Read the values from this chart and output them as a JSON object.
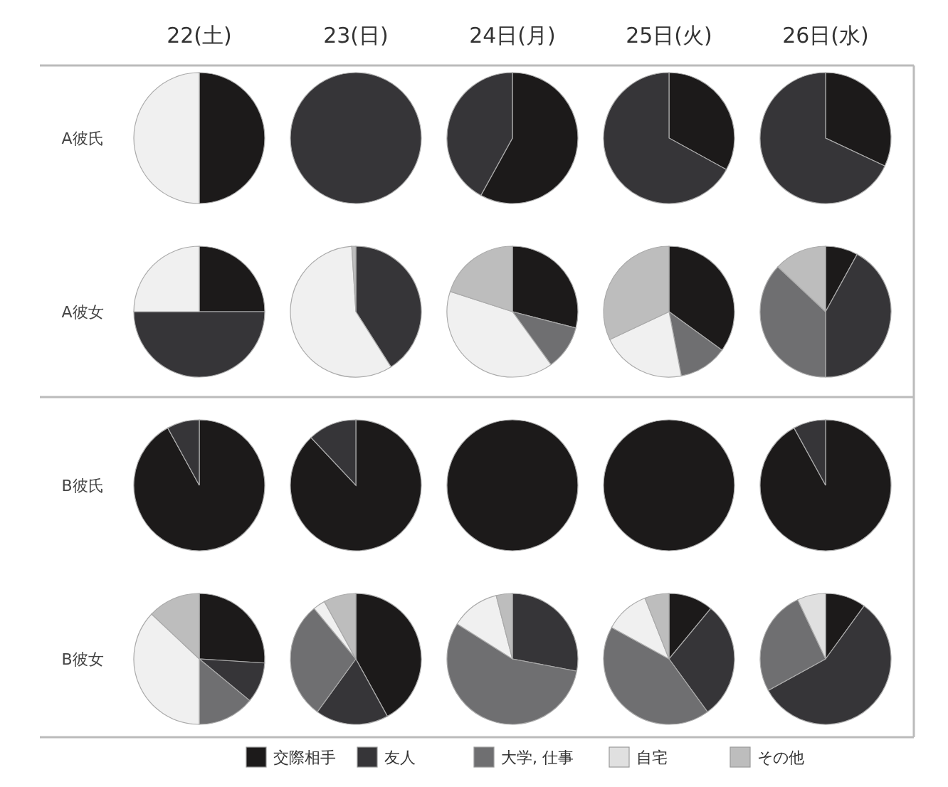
{
  "chart_data": [
    {
      "type": "pie",
      "title": "22(土)",
      "ylabel": "A彼氏",
      "categories": [
        null,
        null,
        null,
        null,
        null
      ],
      "values": [
        50,
        0,
        0,
        50,
        0
      ],
      "colors": [
        "#1c1a1a",
        "#363538",
        "#6f6f71",
        "#f0f0f0",
        "#bdbdbd"
      ]
    },
    {
      "type": "pie",
      "title": "23(日)",
      "categories": [
        null,
        null,
        null,
        null,
        null
      ],
      "values": [
        0,
        100,
        0,
        0,
        0
      ],
      "colors": [
        "#1c1a1a",
        "#363538",
        "#6f6f71",
        "#f0f0f0",
        "#bdbdbd"
      ]
    },
    {
      "type": "pie",
      "title": "24日(月)",
      "categories": [
        null,
        null,
        null,
        null,
        null
      ],
      "values": [
        58,
        42,
        0,
        0,
        0
      ],
      "colors": [
        "#1c1a1a",
        "#363538",
        "#6f6f71",
        "#f0f0f0",
        "#bdbdbd"
      ]
    },
    {
      "type": "pie",
      "title": "25日(火)",
      "categories": [
        null,
        null,
        null,
        null,
        null
      ],
      "values": [
        33,
        67,
        0,
        0,
        0
      ],
      "colors": [
        "#1c1a1a",
        "#363538",
        "#6f6f71",
        "#f0f0f0",
        "#bdbdbd"
      ]
    },
    {
      "type": "pie",
      "title": "26日(水)",
      "categories": [
        null,
        null,
        null,
        null,
        null
      ],
      "values": [
        32,
        68,
        0,
        0,
        0
      ],
      "colors": [
        "#1c1a1a",
        "#363538",
        "#6f6f71",
        "#f0f0f0",
        "#bdbdbd"
      ]
    },
    {
      "type": "pie",
      "ylabel": "A彼女",
      "categories": [
        null,
        null,
        null,
        null,
        null
      ],
      "values": [
        25,
        50,
        0,
        25,
        0
      ],
      "colors": [
        "#1c1a1a",
        "#363538",
        "#6f6f71",
        "#f0f0f0",
        "#bdbdbd"
      ]
    },
    {
      "type": "pie",
      "categories": [
        null,
        null,
        null,
        null,
        null
      ],
      "values": [
        0,
        41,
        0,
        58,
        1
      ],
      "colors": [
        "#1c1a1a",
        "#363538",
        "#6f6f71",
        "#f0f0f0",
        "#bdbdbd"
      ]
    },
    {
      "type": "pie",
      "categories": [
        null,
        null,
        null,
        null,
        null
      ],
      "values": [
        29,
        0,
        11,
        40,
        20
      ],
      "colors": [
        "#1c1a1a",
        "#363538",
        "#6f6f71",
        "#f0f0f0",
        "#bdbdbd"
      ]
    },
    {
      "type": "pie",
      "categories": [
        null,
        null,
        null,
        null,
        null
      ],
      "values": [
        35,
        0,
        12,
        21,
        32
      ],
      "colors": [
        "#1c1a1a",
        "#363538",
        "#6f6f71",
        "#f0f0f0",
        "#bdbdbd"
      ]
    },
    {
      "type": "pie",
      "categories": [
        null,
        null,
        null,
        null,
        null
      ],
      "values": [
        8,
        42,
        37,
        0,
        13
      ],
      "colors": [
        "#1c1a1a",
        "#363538",
        "#6f6f71",
        "#f0f0f0",
        "#bdbdbd"
      ]
    },
    {
      "type": "pie",
      "ylabel": "B彼氏",
      "categories": [
        null,
        null,
        null,
        null,
        null
      ],
      "values": [
        92,
        8,
        0,
        0,
        0
      ],
      "colors": [
        "#1c1a1a",
        "#363538",
        "#6f6f71",
        "#f0f0f0",
        "#bdbdbd"
      ]
    },
    {
      "type": "pie",
      "categories": [
        null,
        null,
        null,
        null,
        null
      ],
      "values": [
        88,
        12,
        0,
        0,
        0
      ],
      "colors": [
        "#1c1a1a",
        "#363538",
        "#6f6f71",
        "#f0f0f0",
        "#bdbdbd"
      ]
    },
    {
      "type": "pie",
      "categories": [
        null,
        null,
        null,
        null,
        null
      ],
      "values": [
        100,
        0,
        0,
        0,
        0
      ],
      "colors": [
        "#1c1a1a",
        "#363538",
        "#6f6f71",
        "#f0f0f0",
        "#bdbdbd"
      ]
    },
    {
      "type": "pie",
      "categories": [
        null,
        null,
        null,
        null,
        null
      ],
      "values": [
        100,
        0,
        0,
        0,
        0
      ],
      "colors": [
        "#1c1a1a",
        "#363538",
        "#6f6f71",
        "#f0f0f0",
        "#bdbdbd"
      ]
    },
    {
      "type": "pie",
      "categories": [
        null,
        null,
        null,
        null,
        null
      ],
      "values": [
        92,
        8,
        0,
        0,
        0
      ],
      "colors": [
        "#1c1a1a",
        "#363538",
        "#6f6f71",
        "#f0f0f0",
        "#bdbdbd"
      ]
    },
    {
      "type": "pie",
      "ylabel": "B彼女",
      "categories": [
        null,
        null,
        null,
        null,
        null
      ],
      "values": [
        26,
        10,
        14,
        37,
        13
      ],
      "colors": [
        "#1c1a1a",
        "#363538",
        "#6f6f71",
        "#f0f0f0",
        "#bdbdbd"
      ]
    },
    {
      "type": "pie",
      "categories": [
        null,
        null,
        null,
        null,
        null
      ],
      "values": [
        42,
        18,
        29,
        3,
        8
      ],
      "colors": [
        "#1c1a1a",
        "#363538",
        "#6f6f71",
        "#f0f0f0",
        "#bdbdbd"
      ]
    },
    {
      "type": "pie",
      "categories": [
        null,
        null,
        null,
        null,
        null
      ],
      "values": [
        0,
        28,
        56,
        12,
        4
      ],
      "colors": [
        "#1c1a1a",
        "#363538",
        "#6f6f71",
        "#f0f0f0",
        "#bdbdbd"
      ]
    },
    {
      "type": "pie",
      "categories": [
        null,
        null,
        null,
        null,
        null
      ],
      "values": [
        11,
        29,
        43,
        11,
        6
      ],
      "colors": [
        "#1c1a1a",
        "#363538",
        "#6f6f71",
        "#f0f0f0",
        "#bdbdbd"
      ]
    },
    {
      "type": "pie",
      "categories": [
        "交際相手",
        "友人",
        "大学, 仕事",
        "自宅",
        "その他"
      ],
      "values": [
        10,
        57,
        26,
        7,
        0
      ],
      "colors": [
        "#1c1a1a",
        "#363538",
        "#6f6f71",
        "#e0e0e0",
        "#bdbdbd"
      ],
      "legend": "bottom"
    }
  ]
}
